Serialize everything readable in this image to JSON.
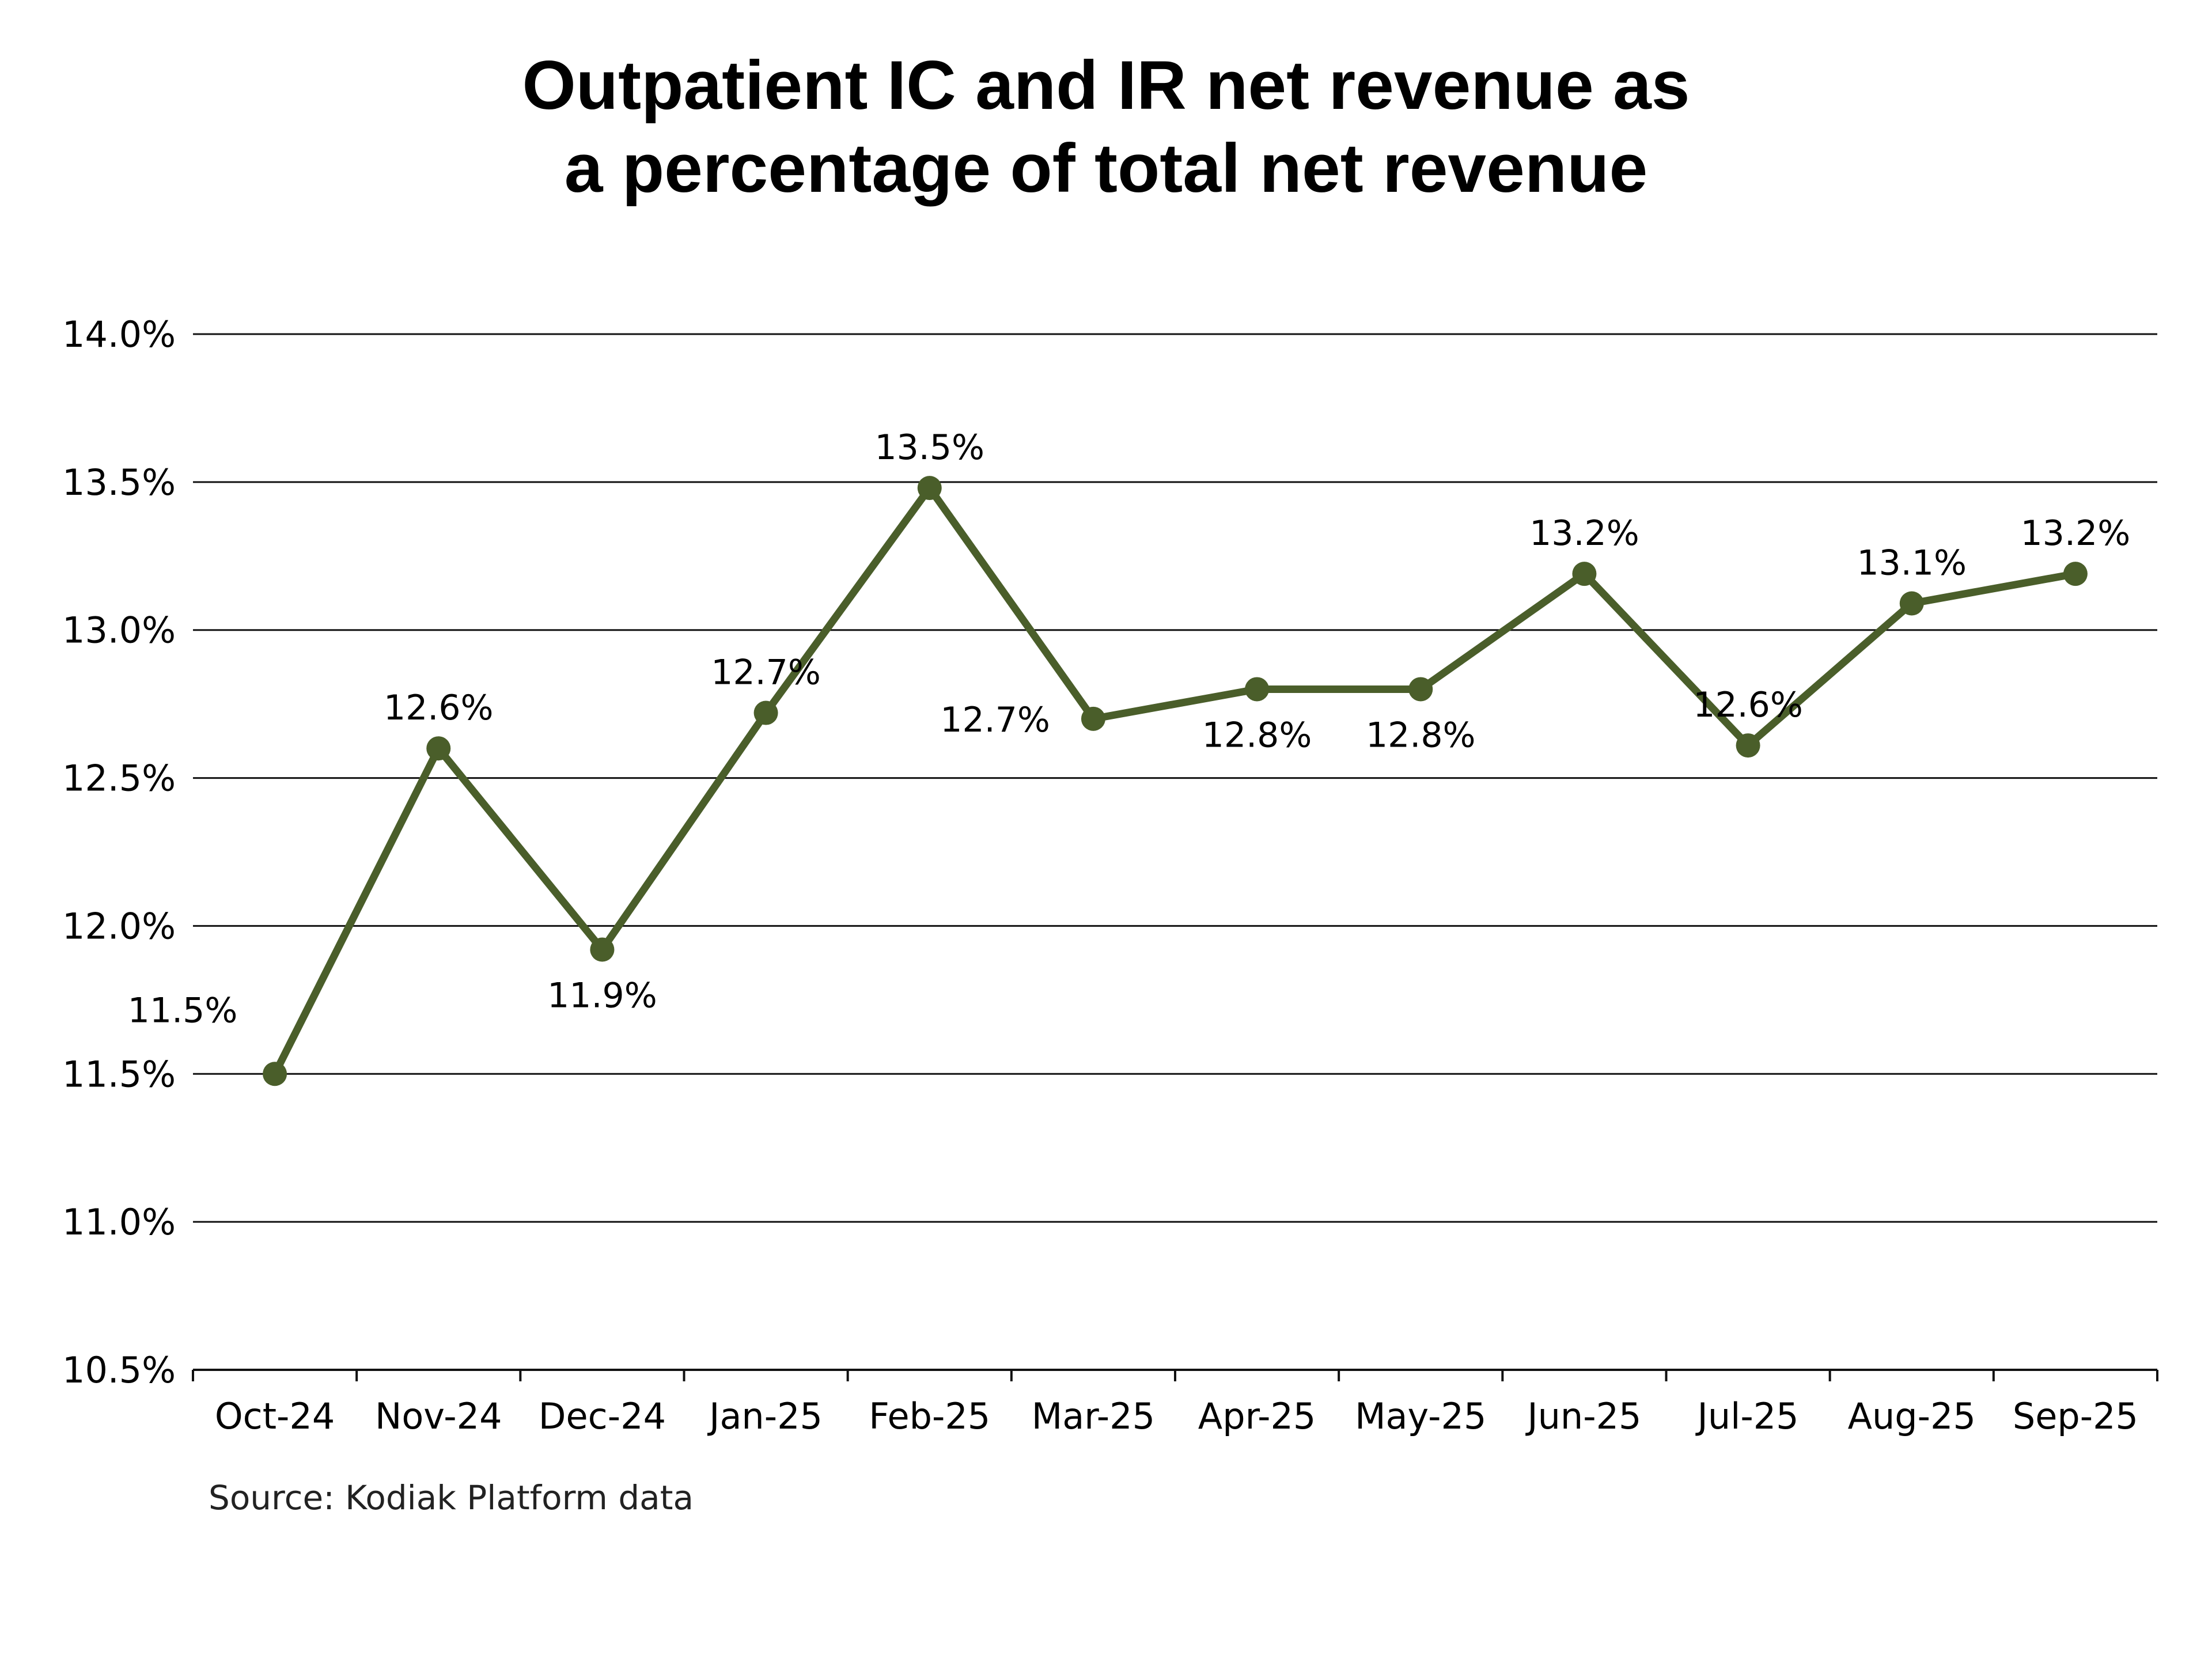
{
  "colors": {
    "series": "#4a5e2a",
    "gridline": "#111111",
    "text": "#000000"
  },
  "chart_data": {
    "type": "line",
    "title": "Outpatient IC and IR net revenue as a percentage of total net revenue",
    "title_lines": [
      "Outpatient IC and IR net revenue as",
      "a percentage of total net revenue"
    ],
    "categories": [
      "Oct-24",
      "Nov-24",
      "Dec-24",
      "Jan-25",
      "Feb-25",
      "Mar-25",
      "Apr-25",
      "May-25",
      "Jun-25",
      "Jul-25",
      "Aug-25",
      "Sep-25"
    ],
    "series": [
      {
        "values": [
          11.5,
          12.6,
          11.92,
          12.72,
          13.48,
          12.7,
          12.8,
          12.8,
          13.19,
          12.61,
          13.09,
          13.19
        ],
        "data_labels": [
          "11.5%",
          "12.6%",
          "11.9%",
          "12.7%",
          "13.5%",
          "12.7%",
          "12.8%",
          "12.8%",
          "13.2%",
          "12.6%",
          "13.1%",
          "13.2%"
        ],
        "label_positions": [
          "left-above",
          "above",
          "below",
          "above",
          "above",
          "left",
          "below",
          "below",
          "above",
          "above",
          "above",
          "above"
        ]
      }
    ],
    "ylim": [
      10.5,
      14.0
    ],
    "yticks": [
      10.5,
      11.0,
      11.5,
      12.0,
      12.5,
      13.0,
      13.5,
      14.0
    ],
    "ytick_labels": [
      "10.5%",
      "11.0%",
      "11.5%",
      "12.0%",
      "12.5%",
      "13.0%",
      "13.5%",
      "14.0%"
    ],
    "grid": true,
    "xlabel": "",
    "ylabel": "",
    "legend": "none",
    "source": "Source: Kodiak Platform data"
  }
}
